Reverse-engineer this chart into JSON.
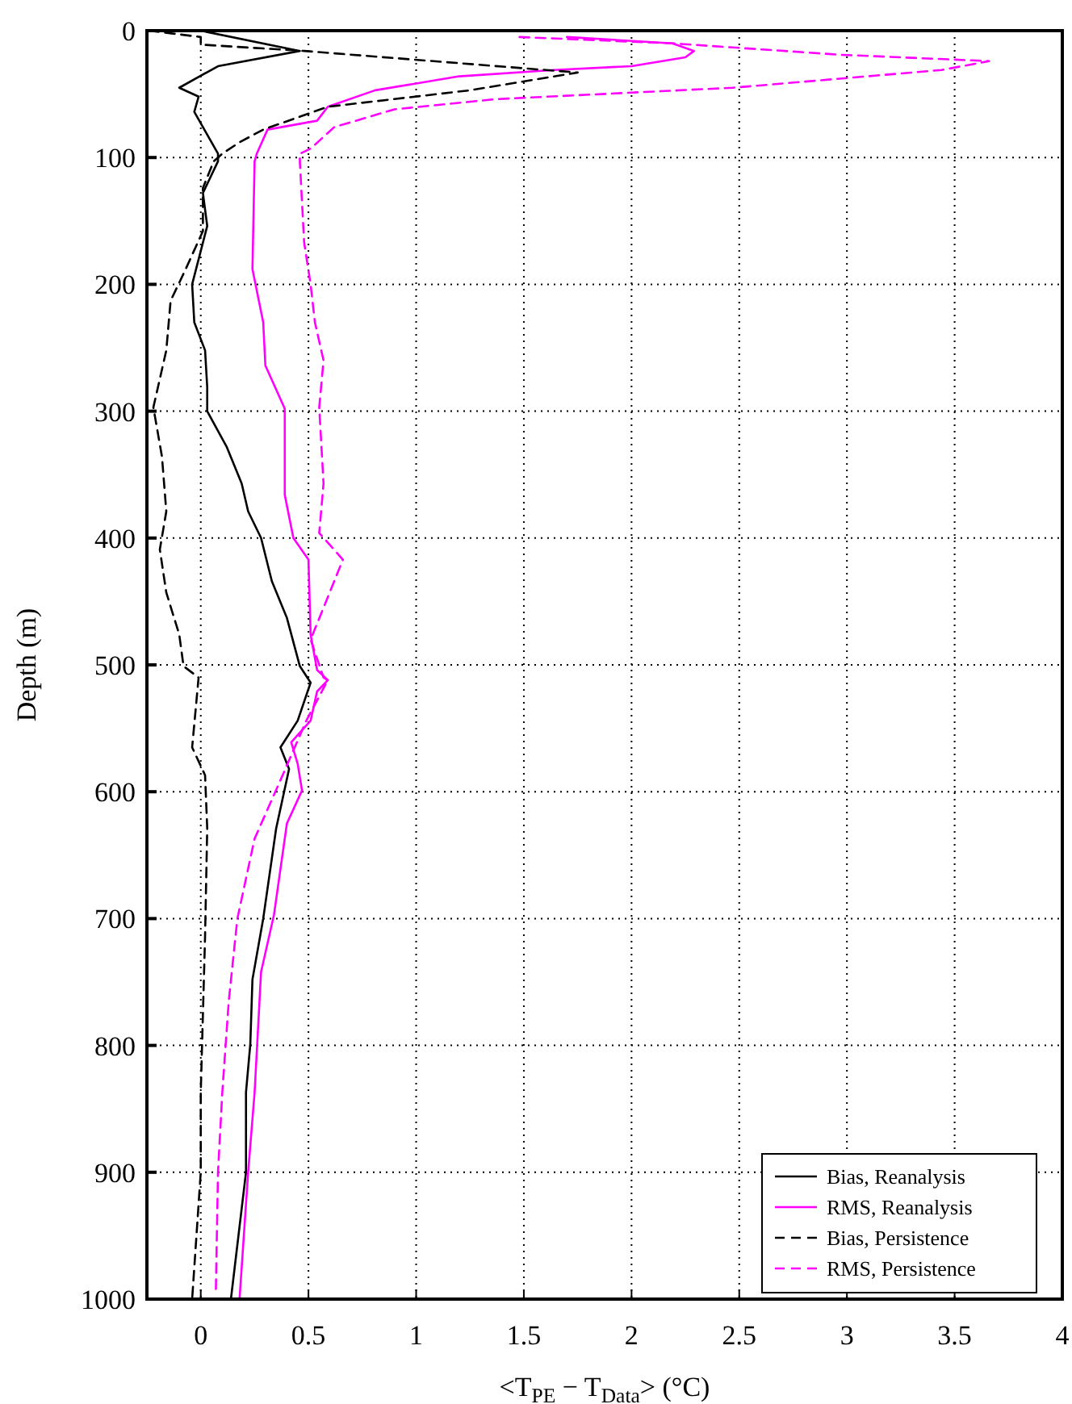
{
  "chart_data": {
    "type": "line",
    "xlabel": "<T$_{PE}$ − T$_{Data}$>  (°C)",
    "ylabel": "Depth (m)",
    "xlim": [
      -0.25,
      4
    ],
    "xticks": [
      0,
      0.5,
      1,
      1.5,
      2,
      2.5,
      3,
      3.5,
      4
    ],
    "ylim": [
      1000,
      0
    ],
    "yticks": [
      0,
      100,
      200,
      300,
      400,
      500,
      600,
      700,
      800,
      900,
      1000
    ],
    "grid": true,
    "legend": "bottom right",
    "series": [
      {
        "name": "Bias, Reanalysis",
        "color": "#000000",
        "line_style": "solid",
        "x": [
          0,
          0.46,
          0.08,
          -0.1,
          -0.01,
          -0.03,
          0.08,
          0.08,
          0.01,
          0.03,
          -0.04,
          -0.03,
          0.02,
          0.03,
          0.03,
          0.12,
          0.19,
          0.22,
          0.28,
          0.33,
          0.4,
          0.46,
          0.51,
          0.45,
          0.37,
          0.41,
          0.35,
          0.29,
          0.24,
          0.23,
          0.21,
          0.21,
          0.14
        ],
        "values": [
          0,
          16,
          28,
          45,
          52,
          64,
          97,
          103,
          128,
          154,
          200,
          230,
          252,
          281,
          300,
          328,
          357,
          379,
          400,
          434,
          463,
          501,
          514,
          544,
          565,
          582,
          629,
          700,
          748,
          799,
          837,
          900,
          1000
        ]
      },
      {
        "name": "RMS, Reanalysis",
        "color": "#ff00ff",
        "line_style": "solid",
        "x": [
          1.7,
          2.19,
          2.29,
          2.25,
          2.0,
          1.64,
          1.2,
          0.81,
          0.59,
          0.54,
          0.31,
          0.26,
          0.25,
          0.24,
          0.29,
          0.3,
          0.39,
          0.39,
          0.43,
          0.5,
          0.51,
          0.54,
          0.59,
          0.54,
          0.51,
          0.42,
          0.45,
          0.47,
          0.4,
          0.34,
          0.28,
          0.25,
          0.22,
          0.18
        ],
        "values": [
          5,
          10,
          16,
          21,
          28,
          31,
          36,
          47,
          60,
          71,
          78,
          97,
          103,
          188,
          230,
          264,
          298,
          366,
          400,
          417,
          476,
          504,
          512,
          521,
          544,
          561,
          578,
          599,
          625,
          697,
          742,
          837,
          900,
          1000
        ]
      },
      {
        "name": "Bias, Persistence",
        "color": "#000000",
        "line_style": "dashed",
        "x": [
          -0.24,
          0,
          0,
          0.48,
          1.75,
          1.25,
          0.59,
          0.29,
          0.18,
          0.1,
          0.06,
          0.01,
          0.01,
          -0.07,
          -0.14,
          -0.16,
          -0.22,
          -0.18,
          -0.16,
          -0.19,
          -0.16,
          -0.1,
          -0.08,
          -0.01,
          -0.04,
          0.02,
          0.03,
          0.02,
          0,
          0,
          -0.04
        ],
        "values": [
          0,
          5,
          11,
          16,
          33,
          47,
          60,
          78,
          88,
          97,
          103,
          124,
          158,
          188,
          213,
          252,
          297,
          336,
          379,
          409,
          443,
          476,
          501,
          510,
          565,
          587,
          629,
          714,
          837,
          900,
          1000
        ]
      },
      {
        "name": "RMS, Persistence",
        "color": "#ff00ff",
        "line_style": "dashed",
        "x": [
          1.48,
          2.19,
          2.97,
          3.66,
          3.44,
          2.47,
          1.37,
          0.9,
          0.62,
          0.51,
          0.46,
          0.46,
          0.48,
          0.51,
          0.53,
          0.57,
          0.55,
          0.57,
          0.55,
          0.66,
          0.57,
          0.51,
          0.57,
          0.59,
          0.49,
          0.38,
          0.25,
          0.17,
          0.13,
          0.1,
          0.08,
          0.07
        ],
        "values": [
          5,
          10,
          19,
          24,
          31,
          45,
          54,
          62,
          76,
          93,
          97,
          103,
          167,
          200,
          230,
          260,
          297,
          357,
          396,
          417,
          455,
          480,
          510,
          512,
          544,
          587,
          637,
          700,
          765,
          837,
          900,
          994
        ]
      }
    ]
  }
}
